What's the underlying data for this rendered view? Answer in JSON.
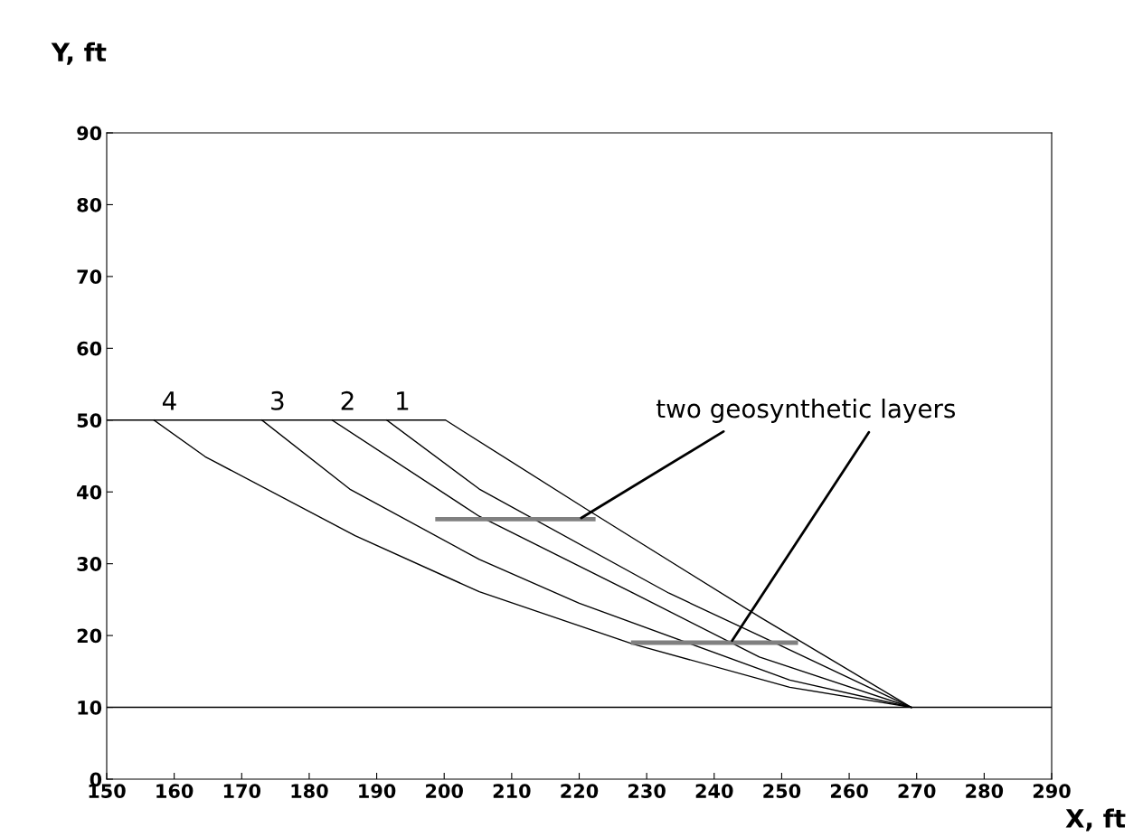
{
  "chart_data": {
    "type": "line",
    "xlabel": "X, ft",
    "ylabel": "Y, ft",
    "xlim": [
      150,
      290
    ],
    "ylim": [
      0,
      90
    ],
    "xticks": [
      150,
      160,
      170,
      180,
      190,
      200,
      210,
      220,
      230,
      240,
      250,
      260,
      270,
      280,
      290
    ],
    "yticks": [
      0,
      10,
      20,
      30,
      40,
      50,
      60,
      70,
      80,
      90
    ],
    "grid": false,
    "legend": false,
    "marker": "none",
    "line_style": "solid",
    "annotations": [
      {
        "text": "two geosynthetic layers",
        "x": 220,
        "y": 36.2
      }
    ],
    "series": [
      {
        "color": "#000000",
        "x": [
          150,
          290
        ],
        "values": [
          10,
          10
        ]
      },
      {
        "color": "#000000",
        "x": [
          150,
          200.2,
          220.9,
          246.7,
          269.2
        ],
        "values": [
          50,
          50,
          37.7,
          22.6,
          10
        ]
      },
      {
        "name": "1",
        "color": "#000000",
        "x": [
          191.5,
          205.2,
          233.3,
          246.7,
          269.2
        ],
        "values": [
          50,
          40.4,
          25.9,
          20.0,
          10
        ]
      },
      {
        "name": "2",
        "color": "#000000",
        "x": [
          183.4,
          205.2,
          228,
          246.7,
          269.2
        ],
        "values": [
          50,
          36.6,
          25.9,
          17.0,
          10
        ]
      },
      {
        "name": "3",
        "color": "#000000",
        "x": [
          173,
          186,
          205.2,
          220,
          251.2,
          269.2
        ],
        "values": [
          50,
          40.4,
          30.6,
          24.5,
          13.8,
          10
        ]
      },
      {
        "name": "4",
        "color": "#000000",
        "x": [
          157,
          164.6,
          186.8,
          205.2,
          228,
          251.2,
          269.2
        ],
        "values": [
          50,
          44.9,
          33.9,
          26.1,
          18.8,
          12.8,
          10
        ]
      },
      {
        "color": "#808080",
        "x": [
          199,
          222.1
        ],
        "values": [
          36.2,
          36.2
        ]
      },
      {
        "color": "#808080",
        "x": [
          228,
          252.1
        ],
        "values": [
          19.0,
          19.0
        ]
      }
    ]
  }
}
